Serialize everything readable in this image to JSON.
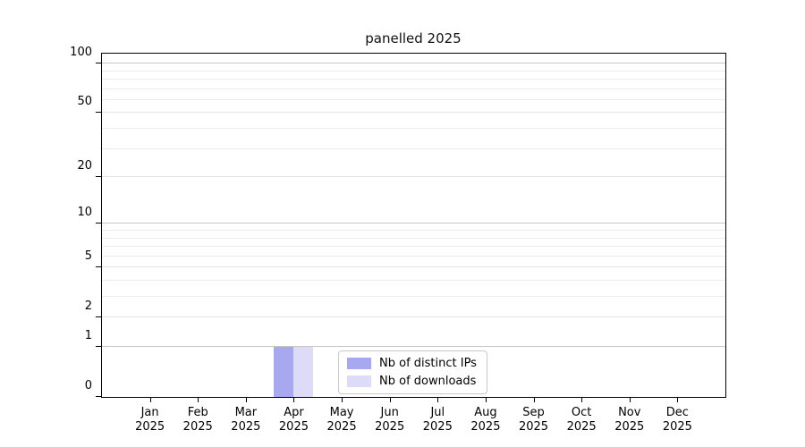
{
  "chart_data": {
    "type": "bar",
    "title": "panelled 2025",
    "categories": [
      "Jan",
      "Feb",
      "Mar",
      "Apr",
      "May",
      "Jun",
      "Jul",
      "Aug",
      "Sep",
      "Oct",
      "Nov",
      "Dec"
    ],
    "year_label": "2025",
    "series": [
      {
        "name": "Nb of distinct IPs",
        "color": "#a8a8f0",
        "values": [
          0,
          0,
          0,
          1,
          0,
          0,
          0,
          0,
          0,
          0,
          0,
          0
        ]
      },
      {
        "name": "Nb of downloads",
        "color": "#dcdcf8",
        "values": [
          0,
          0,
          0,
          1,
          0,
          0,
          0,
          0,
          0,
          0,
          0,
          0
        ]
      }
    ],
    "xlabel": "",
    "ylabel": "",
    "yscale": "log1p",
    "ylim": [
      0,
      115
    ],
    "yticks": [
      0,
      1,
      2,
      5,
      10,
      20,
      50,
      100
    ],
    "major_gridlines": [
      1,
      10,
      100
    ],
    "mid_gridlines": [
      2,
      5,
      20,
      50
    ],
    "minor_gridlines": [
      3,
      4,
      6,
      7,
      8,
      9,
      30,
      40,
      60,
      70,
      80,
      90
    ],
    "grid": true,
    "legend_position": "lower center"
  }
}
